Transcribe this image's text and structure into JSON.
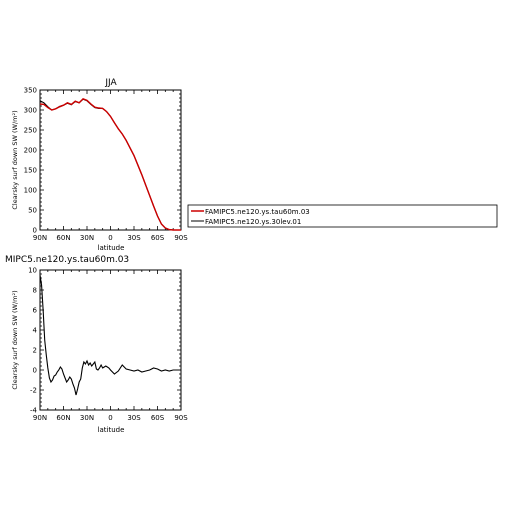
{
  "chart_data": [
    {
      "type": "line",
      "title": "JJA",
      "xlabel": "latitude",
      "ylabel": "Clearsky surf down SW (W/m²)",
      "xlim": [
        90,
        -90
      ],
      "ylim": [
        0,
        350
      ],
      "x_ticks": [
        90,
        60,
        30,
        0,
        -30,
        -60,
        -90
      ],
      "x_tick_labels": [
        "90N",
        "60N",
        "30N",
        "0",
        "30S",
        "60S",
        "90S"
      ],
      "y_ticks": [
        0,
        50,
        100,
        150,
        200,
        250,
        300,
        350
      ],
      "y_tick_labels": [
        "0",
        "50",
        "100",
        "150",
        "200",
        "250",
        "300",
        "350"
      ],
      "legend_position": "right",
      "series": [
        {
          "name": "FAMIPC5.ne120.ys.tau60m.03",
          "color": "#cc0000",
          "x": [
            90,
            85,
            80,
            75,
            70,
            65,
            60,
            55,
            50,
            45,
            40,
            35,
            30,
            25,
            20,
            15,
            10,
            5,
            0,
            -5,
            -10,
            -15,
            -20,
            -25,
            -30,
            -35,
            -40,
            -45,
            -50,
            -55,
            -60,
            -65,
            -70,
            -75,
            -80,
            -85,
            -90
          ],
          "y": [
            315,
            314,
            306,
            300,
            303,
            308,
            312,
            318,
            314,
            322,
            318,
            328,
            324,
            315,
            307,
            305,
            304,
            296,
            284,
            268,
            253,
            240,
            224,
            205,
            186,
            162,
            138,
            112,
            86,
            60,
            35,
            15,
            5,
            1,
            0,
            0,
            0
          ]
        },
        {
          "name": "FAMIPC5.ne120.ys.30lev.01",
          "color": "#000000",
          "x": [
            90,
            85,
            80,
            75,
            70,
            65,
            60,
            55,
            50,
            45,
            40,
            35,
            30,
            25,
            20,
            15,
            10,
            5,
            0,
            -5,
            -10,
            -15,
            -20,
            -25,
            -30,
            -35,
            -40,
            -45,
            -50,
            -55,
            -60,
            -65,
            -70,
            -75,
            -80,
            -85,
            -90
          ],
          "y": [
            323,
            318,
            308,
            300,
            303,
            309,
            312,
            317,
            313,
            321,
            318,
            327,
            323,
            314,
            306,
            304,
            304,
            296,
            284,
            268,
            253,
            240,
            224,
            205,
            186,
            162,
            138,
            112,
            86,
            60,
            35,
            15,
            5,
            1,
            0,
            0,
            0
          ]
        }
      ]
    },
    {
      "type": "line",
      "title": "MIPC5.ne120.ys.tau60m.03",
      "xlabel": "latitude",
      "ylabel": "Clearsky surf down SW (W/m²)",
      "xlim": [
        90,
        -90
      ],
      "ylim": [
        -4,
        10
      ],
      "x_ticks": [
        90,
        60,
        30,
        0,
        -30,
        -60,
        -90
      ],
      "x_tick_labels": [
        "90N",
        "60N",
        "30N",
        "0",
        "30S",
        "60S",
        "90S"
      ],
      "y_ticks": [
        -4,
        -2,
        0,
        2,
        4,
        6,
        8,
        10
      ],
      "y_tick_labels": [
        "-4",
        "-2",
        "0",
        "2",
        "4",
        "6",
        "8",
        "10"
      ],
      "series": [
        {
          "color": "#000000",
          "x": [
            90,
            88,
            86,
            84,
            82,
            80,
            78,
            76,
            74,
            72,
            70,
            68,
            66,
            64,
            62,
            60,
            58,
            56,
            54,
            52,
            50,
            48,
            46,
            44,
            42,
            40,
            38,
            36,
            34,
            32,
            30,
            28,
            26,
            24,
            22,
            20,
            18,
            16,
            14,
            12,
            10,
            8,
            6,
            4,
            2,
            0,
            -5,
            -10,
            -15,
            -20,
            -25,
            -30,
            -35,
            -40,
            -45,
            -50,
            -55,
            -60,
            -65,
            -70,
            -75,
            -80,
            -85,
            -90
          ],
          "y": [
            9.5,
            8.5,
            6.0,
            3.0,
            1.5,
            0.2,
            -0.8,
            -1.2,
            -1.0,
            -0.6,
            -0.5,
            -0.2,
            0.0,
            0.3,
            0.1,
            -0.4,
            -0.8,
            -1.2,
            -1.0,
            -0.7,
            -0.9,
            -1.4,
            -1.8,
            -2.5,
            -1.9,
            -1.2,
            -0.9,
            0.2,
            0.8,
            0.6,
            0.9,
            0.5,
            0.7,
            0.4,
            0.6,
            0.8,
            0.1,
            0.0,
            0.2,
            0.5,
            0.2,
            0.3,
            0.4,
            0.3,
            0.2,
            0.0,
            -0.4,
            -0.1,
            0.5,
            0.1,
            0.0,
            -0.1,
            0.0,
            -0.2,
            -0.1,
            0.0,
            0.2,
            0.1,
            -0.1,
            0.0,
            -0.1,
            0.0,
            0.0,
            0.0
          ]
        }
      ]
    }
  ]
}
